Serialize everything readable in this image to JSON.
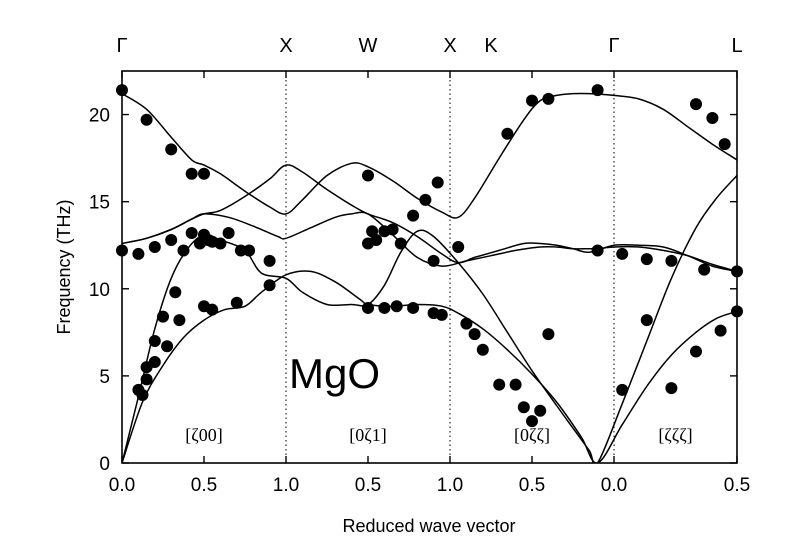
{
  "chart_data": {
    "type": "line",
    "material_label": "MgO",
    "xlabel": "Reduced wave vector",
    "ylabel": "Frequency (THz)",
    "ylim": [
      0,
      22.5
    ],
    "yticks": [
      "0",
      "5",
      "10",
      "15",
      "20"
    ],
    "x_tick_labels": [
      "0.0",
      "0.5",
      "1.0",
      "0.5",
      "1.0",
      "0.5",
      "0.0",
      "0.5"
    ],
    "symmetry_points": [
      "Γ",
      "X",
      "W",
      "X",
      "K",
      "Γ",
      "L"
    ],
    "direction_labels": [
      "[ζ00]",
      "[0ζ1]",
      "[0ζζ]",
      "[ζζζ]"
    ],
    "segments": [
      {
        "from": "Γ",
        "to": "X",
        "range": [
          0,
          1
        ]
      },
      {
        "from": "X",
        "to": "W",
        "range": [
          0,
          0.5
        ]
      },
      {
        "from": "W",
        "to": "X",
        "range": [
          0.5,
          1
        ]
      },
      {
        "from": "K",
        "to": "Γ",
        "range": [
          0.75,
          0
        ]
      },
      {
        "from": "Γ",
        "to": "L",
        "range": [
          0,
          0.5
        ]
      }
    ],
    "grid": false,
    "vertical_dotted_lines_at": [
      "X",
      "X",
      "Γ"
    ],
    "series": [
      {
        "values": [
          [
            0,
            21.2
          ],
          [
            0.3,
            20.3
          ],
          [
            0.6,
            18.7
          ],
          [
            0.85,
            17.4
          ],
          [
            1,
            17.1
          ],
          [
            1.2,
            16.6
          ],
          [
            1.5,
            15.6
          ],
          [
            1.8,
            14.7
          ],
          [
            2,
            14.3
          ],
          [
            2.2,
            15.1
          ],
          [
            2.5,
            16.5
          ],
          [
            2.8,
            17.2
          ],
          [
            3,
            17.0
          ],
          [
            3.3,
            16.2
          ],
          [
            3.6,
            15.2
          ],
          [
            3.9,
            14.4
          ],
          [
            4.1,
            14.1
          ],
          [
            4.3,
            15.2
          ],
          [
            4.6,
            17.5
          ],
          [
            4.9,
            19.7
          ],
          [
            5.1,
            20.8
          ],
          [
            5.3,
            21.1
          ],
          [
            5.5,
            21.2
          ],
          [
            5.7,
            21.2
          ],
          [
            6,
            21.1
          ],
          [
            6.3,
            20.9
          ],
          [
            6.6,
            20.3
          ],
          [
            6.9,
            19.3
          ],
          [
            7.2,
            18.3
          ],
          [
            7.5,
            17.4
          ]
        ]
      },
      {
        "values": [
          [
            0,
            12.6
          ],
          [
            0.3,
            12.9
          ],
          [
            0.6,
            13.4
          ],
          [
            0.85,
            14.0
          ],
          [
            1,
            14.3
          ],
          [
            1.2,
            14.5
          ],
          [
            1.5,
            15.3
          ],
          [
            1.8,
            16.3
          ],
          [
            2,
            17.1
          ],
          [
            2.2,
            16.7
          ],
          [
            2.5,
            15.7
          ],
          [
            2.8,
            14.8
          ],
          [
            3,
            14.3
          ],
          [
            3.3,
            13.8
          ],
          [
            3.6,
            13.0
          ],
          [
            3.9,
            12.0
          ],
          [
            4.1,
            11.5
          ],
          [
            4.3,
            11.8
          ],
          [
            4.6,
            12.2
          ],
          [
            4.9,
            12.6
          ],
          [
            5.1,
            12.6
          ],
          [
            5.3,
            12.5
          ],
          [
            5.5,
            12.3
          ],
          [
            5.7,
            12.1
          ],
          [
            6,
            12.5
          ],
          [
            6.3,
            12.5
          ],
          [
            6.6,
            12.4
          ],
          [
            6.9,
            11.9
          ],
          [
            7.2,
            11.3
          ],
          [
            7.5,
            11.0
          ]
        ]
      },
      {
        "values": [
          [
            0,
            12.6
          ],
          [
            0.3,
            12.9
          ],
          [
            0.6,
            13.4
          ],
          [
            0.85,
            14.0
          ],
          [
            1,
            14.3
          ],
          [
            1.3,
            14.1
          ],
          [
            1.6,
            13.6
          ],
          [
            1.9,
            13.0
          ],
          [
            2,
            12.9
          ],
          [
            2.3,
            13.5
          ],
          [
            2.6,
            14.1
          ],
          [
            2.8,
            14.3
          ],
          [
            3,
            14.3
          ],
          [
            3.3,
            13.1
          ],
          [
            3.6,
            11.8
          ],
          [
            3.9,
            11.3
          ],
          [
            4.2,
            11.6
          ],
          [
            4.5,
            11.9
          ],
          [
            4.8,
            12.2
          ],
          [
            5.1,
            12.4
          ],
          [
            5.3,
            12.4
          ],
          [
            5.5,
            12.3
          ],
          [
            5.7,
            12.3
          ],
          [
            5.8,
            12.3
          ],
          [
            6,
            12.4
          ],
          [
            6.3,
            12.4
          ],
          [
            6.6,
            12.2
          ],
          [
            6.9,
            11.9
          ],
          [
            7.2,
            11.4
          ],
          [
            7.5,
            11.0
          ]
        ]
      },
      {
        "values": [
          [
            0,
            0
          ],
          [
            0.2,
            3.8
          ],
          [
            0.4,
            7.7
          ],
          [
            0.6,
            10.6
          ],
          [
            0.8,
            12.3
          ],
          [
            1,
            13.1
          ],
          [
            1.2,
            12.8
          ],
          [
            1.5,
            12.2
          ],
          [
            1.7,
            10.9
          ],
          [
            2,
            10.6
          ],
          [
            2.2,
            9.8
          ],
          [
            2.5,
            9.1
          ],
          [
            2.8,
            9.1
          ],
          [
            3,
            9.1
          ],
          [
            3.2,
            10.2
          ],
          [
            3.4,
            12.1
          ],
          [
            3.6,
            13.3
          ],
          [
            3.8,
            13.0
          ],
          [
            4.1,
            11.5
          ],
          [
            4.4,
            9.7
          ],
          [
            4.7,
            7.5
          ],
          [
            5,
            5.3
          ],
          [
            5.3,
            3.3
          ],
          [
            5.5,
            2.0
          ],
          [
            5.7,
            0.7
          ],
          [
            5.8,
            0
          ],
          [
            6.1,
            3.4
          ],
          [
            6.4,
            7.0
          ],
          [
            6.7,
            10.6
          ],
          [
            7.0,
            13.5
          ],
          [
            7.25,
            15.2
          ],
          [
            7.5,
            16.5
          ]
        ]
      },
      {
        "values": [
          [
            0,
            0
          ],
          [
            0.25,
            3.5
          ],
          [
            0.5,
            5.6
          ],
          [
            0.75,
            7.2
          ],
          [
            1,
            8.2
          ],
          [
            1.25,
            8.8
          ],
          [
            1.5,
            9.0
          ],
          [
            1.7,
            9.8
          ],
          [
            2,
            10.8
          ],
          [
            2.3,
            11.0
          ],
          [
            2.6,
            10.4
          ],
          [
            2.9,
            9.4
          ],
          [
            3,
            9.1
          ],
          [
            3.3,
            9.0
          ],
          [
            3.6,
            9.1
          ],
          [
            3.9,
            9.0
          ],
          [
            4.1,
            8.6
          ],
          [
            4.4,
            7.7
          ],
          [
            4.7,
            6.5
          ],
          [
            5,
            5.1
          ],
          [
            5.3,
            3.5
          ],
          [
            5.6,
            1.5
          ],
          [
            5.8,
            0
          ],
          [
            6.1,
            2.2
          ],
          [
            6.4,
            4.4
          ],
          [
            6.7,
            6.2
          ],
          [
            7.0,
            7.5
          ],
          [
            7.25,
            8.3
          ],
          [
            7.5,
            8.7
          ]
        ]
      }
    ],
    "measured_points": [
      [
        0,
        21.4
      ],
      [
        0.3,
        19.7
      ],
      [
        0.6,
        18.0
      ],
      [
        0.85,
        16.6
      ],
      [
        1,
        16.6
      ],
      [
        0,
        12.2
      ],
      [
        0.2,
        12.0
      ],
      [
        0.4,
        12.4
      ],
      [
        0.6,
        12.8
      ],
      [
        0.75,
        12.2
      ],
      [
        0.85,
        13.2
      ],
      [
        0.95,
        12.6
      ],
      [
        1,
        13.1
      ],
      [
        1.05,
        12.8
      ],
      [
        1.1,
        12.7
      ],
      [
        1.2,
        12.6
      ],
      [
        1.3,
        13.2
      ],
      [
        1.45,
        12.2
      ],
      [
        1.55,
        12.2
      ],
      [
        1.8,
        11.6
      ],
      [
        1.8,
        10.2
      ],
      [
        1.4,
        9.2
      ],
      [
        1.1,
        8.8
      ],
      [
        1,
        9.0
      ],
      [
        0.7,
        8.2
      ],
      [
        0.55,
        6.7
      ],
      [
        0.4,
        5.8
      ],
      [
        0.3,
        4.8
      ],
      [
        0.25,
        3.9
      ],
      [
        0.2,
        4.2
      ],
      [
        0.65,
        9.8
      ],
      [
        0.5,
        8.4
      ],
      [
        0.4,
        7.0
      ],
      [
        0.3,
        5.5
      ],
      [
        3,
        16.5
      ],
      [
        3,
        12.6
      ],
      [
        3.05,
        13.3
      ],
      [
        3.1,
        12.8
      ],
      [
        3.2,
        13.3
      ],
      [
        3.3,
        13.4
      ],
      [
        3.4,
        12.6
      ],
      [
        3.55,
        14.2
      ],
      [
        3.7,
        15.1
      ],
      [
        3.85,
        16.1
      ],
      [
        3.8,
        11.6
      ],
      [
        4.1,
        12.4
      ],
      [
        3.0,
        8.9
      ],
      [
        3.2,
        8.9
      ],
      [
        3.35,
        9.0
      ],
      [
        3.55,
        8.9
      ],
      [
        3.8,
        8.6
      ],
      [
        3.9,
        8.5
      ],
      [
        4.2,
        8.0
      ],
      [
        4.3,
        7.4
      ],
      [
        4.4,
        6.5
      ],
      [
        4.6,
        4.5
      ],
      [
        4.8,
        4.5
      ],
      [
        4.9,
        3.2
      ],
      [
        5.0,
        2.4
      ],
      [
        5.1,
        3.0
      ],
      [
        5.2,
        7.4
      ],
      [
        4.7,
        18.9
      ],
      [
        5.0,
        20.8
      ],
      [
        5.2,
        20.9
      ],
      [
        5.8,
        21.4
      ],
      [
        5.8,
        12.2
      ],
      [
        6.1,
        12.0
      ],
      [
        6.4,
        11.7
      ],
      [
        6.7,
        11.6
      ],
      [
        7.1,
        11.1
      ],
      [
        7.5,
        11.0
      ],
      [
        6.1,
        4.2
      ],
      [
        6.4,
        8.2
      ],
      [
        6.7,
        4.3
      ],
      [
        7.0,
        6.4
      ],
      [
        7.3,
        7.6
      ],
      [
        7.5,
        8.7
      ],
      [
        7.0,
        20.6
      ],
      [
        7.2,
        19.8
      ],
      [
        7.35,
        18.3
      ]
    ]
  }
}
